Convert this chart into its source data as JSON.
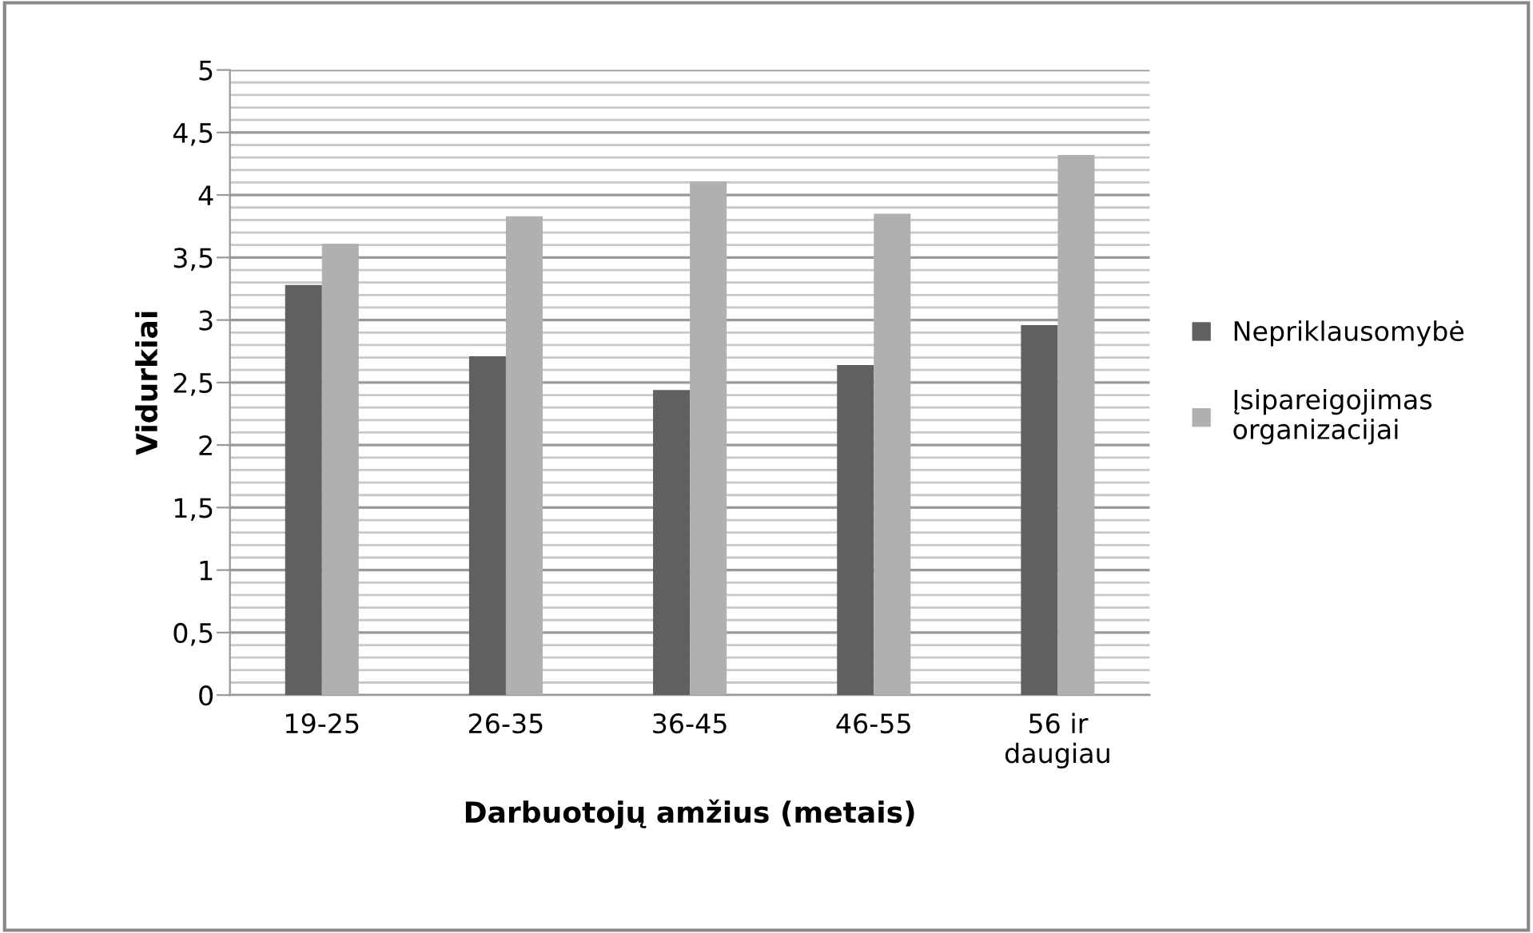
{
  "chart_data": {
    "type": "bar",
    "xlabel": "Darbuotojų amžius (metais)",
    "ylabel": "Vidurkiai",
    "categories": [
      "19-25",
      "26-35",
      "36-45",
      "46-55",
      "56 ir\ndaugiau"
    ],
    "series": [
      {
        "name": "Nepriklausomybė",
        "color": "#606060",
        "values": [
          3.28,
          2.71,
          2.44,
          2.64,
          2.96
        ]
      },
      {
        "name": "Įsipareigojimas\norganizacijai",
        "color": "#b0b0b0",
        "values": [
          3.61,
          3.83,
          4.11,
          3.85,
          4.32
        ]
      }
    ],
    "ylim": [
      0,
      5
    ],
    "yticks": [
      0,
      {
        "value": 0.1,
        "label": null
      },
      {
        "value": 0.2,
        "label": null
      },
      {
        "value": 0.3,
        "label": null
      },
      {
        "value": 0.4,
        "label": null
      },
      {
        "value": 0.5,
        "label": "0,5"
      },
      {
        "value": 0.6,
        "label": null
      },
      {
        "value": 0.7,
        "label": null
      },
      {
        "value": 0.8,
        "label": null
      },
      {
        "value": 0.9,
        "label": null
      },
      1,
      {
        "value": 1.1,
        "label": null
      },
      {
        "value": 1.2,
        "label": null
      },
      {
        "value": 1.3,
        "label": null
      },
      {
        "value": 1.4,
        "label": null
      },
      {
        "value": 1.5,
        "label": "1,5"
      },
      {
        "value": 1.6,
        "label": null
      },
      {
        "value": 1.7,
        "label": null
      },
      {
        "value": 1.8,
        "label": null
      },
      {
        "value": 1.9,
        "label": null
      },
      2,
      {
        "value": 2.1,
        "label": null
      },
      {
        "value": 2.2,
        "label": null
      },
      {
        "value": 2.3,
        "label": null
      },
      {
        "value": 2.4,
        "label": null
      },
      {
        "value": 2.5,
        "label": "2,5"
      },
      {
        "value": 2.6,
        "label": null
      },
      {
        "value": 2.7,
        "label": null
      },
      {
        "value": 2.8,
        "label": null
      },
      {
        "value": 2.9,
        "label": null
      },
      3,
      {
        "value": 3.1,
        "label": null
      },
      {
        "value": 3.2,
        "label": null
      },
      {
        "value": 3.3,
        "label": null
      },
      {
        "value": 3.4,
        "label": null
      },
      {
        "value": 3.5,
        "label": "3,5"
      },
      {
        "value": 3.6,
        "label": null
      },
      {
        "value": 3.7,
        "label": null
      },
      {
        "value": 3.8,
        "label": null
      },
      {
        "value": 3.9,
        "label": null
      },
      4,
      {
        "value": 4.1,
        "label": null
      },
      {
        "value": 4.2,
        "label": null
      },
      {
        "value": 4.3,
        "label": null
      },
      {
        "value": 4.4,
        "label": null
      },
      {
        "value": 4.5,
        "label": "4,5"
      },
      {
        "value": 4.6,
        "label": null
      },
      {
        "value": 4.7,
        "label": null
      },
      {
        "value": 4.8,
        "label": null
      },
      {
        "value": 4.9,
        "label": null
      },
      5
    ],
    "grid": "y",
    "legend": "right"
  }
}
